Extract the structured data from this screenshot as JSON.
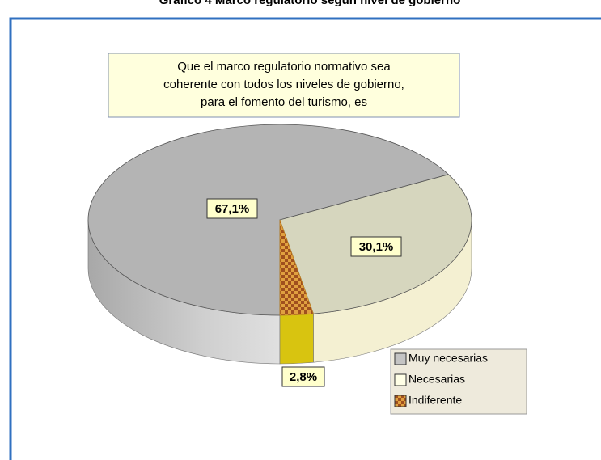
{
  "chart_data": {
    "type": "pie",
    "title": "Gráfico 4 Marco regulatorio según nivel de gobierno",
    "annotation": [
      "Que el marco regulatorio normativo sea",
      "coherente con todos los niveles de gobierno,",
      "para el fomento del turismo, es"
    ],
    "categories": [
      "Muy necesarias",
      "Necesarias",
      "Indiferente"
    ],
    "values": [
      67.1,
      30.1,
      2.8
    ],
    "value_labels": [
      "67,1%",
      "30,1%",
      "2,8%"
    ],
    "colors": [
      "#b4b4b4",
      "#d6d6be",
      "#c8781e"
    ],
    "legend": "bottom-right"
  }
}
